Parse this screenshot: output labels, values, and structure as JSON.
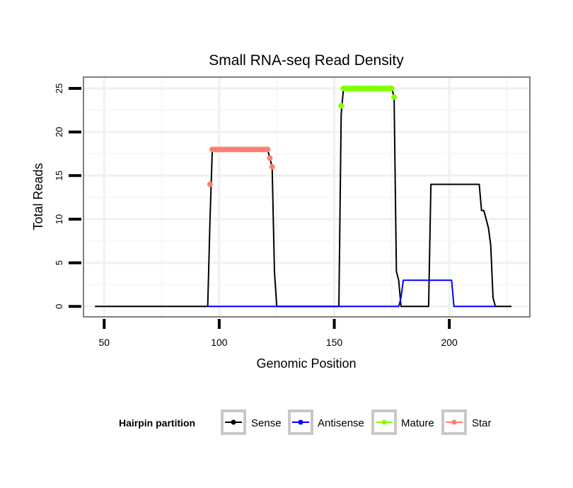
{
  "chart_data": {
    "type": "line",
    "title": "Small RNA-seq Read Density",
    "xlabel": "Genomic Position",
    "ylabel": "Total Reads",
    "xlim": [
      41,
      235
    ],
    "ylim": [
      -1.2,
      26.3
    ],
    "xticks": [
      50,
      100,
      150,
      200
    ],
    "yticks": [
      0,
      5,
      10,
      15,
      20,
      25
    ],
    "grid": true,
    "legend": {
      "title": "Hairpin partition",
      "position": "bottom",
      "entries": [
        {
          "label": "Sense",
          "color": "#000000"
        },
        {
          "label": "Antisense",
          "color": "#0000ff"
        },
        {
          "label": "Mature",
          "color": "#7fff00"
        },
        {
          "label": "Star",
          "color": "#fa8072"
        }
      ]
    },
    "series": [
      {
        "name": "Sense",
        "color": "#000000",
        "style": "line",
        "x": [
          46,
          95,
          96,
          97,
          121,
          122,
          123,
          124,
          125,
          152,
          153,
          154,
          175,
          176,
          177,
          178,
          179,
          191,
          192,
          213,
          214,
          215,
          216,
          217,
          218,
          219,
          220,
          227
        ],
        "y": [
          0,
          0,
          10,
          18,
          18,
          17,
          16,
          4,
          0,
          0,
          22,
          25,
          25,
          24,
          4,
          3,
          0,
          0,
          14,
          14,
          11,
          11,
          10,
          9,
          7,
          1,
          0,
          0
        ]
      },
      {
        "name": "Antisense",
        "color": "#0000ff",
        "style": "line",
        "x": [
          95,
          178,
          179,
          180,
          201,
          202,
          220
        ],
        "y": [
          0,
          0,
          1,
          3,
          3,
          0,
          0
        ]
      },
      {
        "name": "Mature",
        "color": "#7fff00",
        "style": "points",
        "x": [
          153,
          154,
          155,
          156,
          157,
          158,
          159,
          160,
          161,
          162,
          163,
          164,
          165,
          166,
          167,
          168,
          169,
          170,
          171,
          172,
          173,
          174,
          175,
          176
        ],
        "y": [
          23,
          25,
          25,
          25,
          25,
          25,
          25,
          25,
          25,
          25,
          25,
          25,
          25,
          25,
          25,
          25,
          25,
          25,
          25,
          25,
          25,
          25,
          25,
          24
        ]
      },
      {
        "name": "Star",
        "color": "#fa8072",
        "style": "points",
        "x": [
          96,
          97,
          98,
          99,
          100,
          101,
          102,
          103,
          104,
          105,
          106,
          107,
          108,
          109,
          110,
          111,
          112,
          113,
          114,
          115,
          116,
          117,
          118,
          119,
          120,
          121,
          122,
          123
        ],
        "y": [
          14,
          18,
          18,
          18,
          18,
          18,
          18,
          18,
          18,
          18,
          18,
          18,
          18,
          18,
          18,
          18,
          18,
          18,
          18,
          18,
          18,
          18,
          18,
          18,
          18,
          18,
          17,
          16
        ]
      }
    ]
  }
}
